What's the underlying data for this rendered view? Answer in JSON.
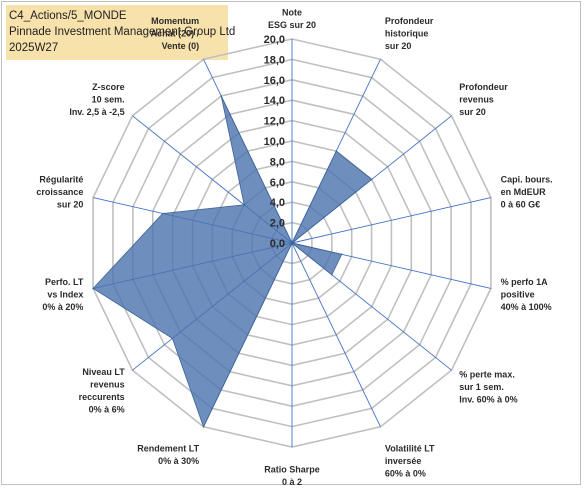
{
  "header": {
    "line1": "C4_Actions/5_MONDE",
    "line2": "Pinnade Investment Management Group Ltd",
    "line3": "2025W27",
    "background_color": "#f8e2ac"
  },
  "chart_data": {
    "type": "radar",
    "title": "",
    "rmin": 0,
    "rmax": 20,
    "tick_step": 2,
    "ticks": [
      "0,0",
      "2,0",
      "4,0",
      "6,0",
      "8,0",
      "10,0",
      "12,0",
      "14,0",
      "16,0",
      "18,0",
      "20,0"
    ],
    "grid": true,
    "fill_color": "#4a72ad",
    "fill_opacity": 0.8,
    "spoke_color": "#4472c4",
    "grid_color": "#c0c0c0",
    "axes": [
      {
        "label": [
          "Note",
          "ESG sur 20"
        ],
        "value": 0
      },
      {
        "label": [
          "Profondeur",
          "historique",
          "sur 20"
        ],
        "value": 10
      },
      {
        "label": [
          "Profondeur",
          "revenus",
          "sur 20"
        ],
        "value": 10
      },
      {
        "label": [
          "Capi. bours.",
          "en MdEUR",
          "0 à 60 G€"
        ],
        "value": 0
      },
      {
        "label": [
          "% perfo 1A",
          "positive",
          "40% à 100%"
        ],
        "value": 5
      },
      {
        "label": [
          "% perte max.",
          "sur 1 sem.",
          "Inv. 60% à 0%"
        ],
        "value": 5
      },
      {
        "label": [
          "Volatilité LT",
          "inversée",
          "60% à 0%"
        ],
        "value": 0
      },
      {
        "label": [
          "Ratio Sharpe",
          "0 à 2"
        ],
        "value": 0
      },
      {
        "label": [
          "Rendement LT",
          "0% à 30%"
        ],
        "value": 20
      },
      {
        "label": [
          "Niveau LT",
          "revenus",
          "reccurents",
          "0% à 6%"
        ],
        "value": 15
      },
      {
        "label": [
          "Perfo. LT",
          "vs Index",
          "0% à 20%"
        ],
        "value": 20
      },
      {
        "label": [
          "Régularité",
          "croissance",
          "sur 20"
        ],
        "value": 13
      },
      {
        "label": [
          "Z-score",
          "10 sem.",
          "Inv. 2,5 à -2,5"
        ],
        "value": 6
      },
      {
        "label": [
          "Momentum",
          "Achat (20) /",
          "Vente (0)"
        ],
        "value": 16
      }
    ]
  }
}
